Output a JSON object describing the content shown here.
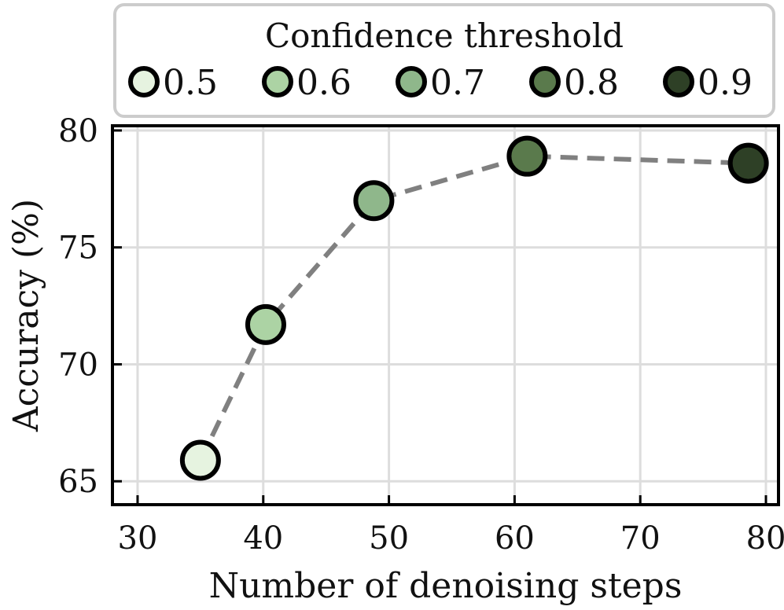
{
  "chart_data": {
    "type": "line",
    "xlabel": "Number of denoising steps",
    "ylabel": "Accuracy (%)",
    "xlim": [
      28,
      81
    ],
    "ylim": [
      64,
      80.2
    ],
    "xticks": [
      "30",
      "40",
      "50",
      "60",
      "70",
      "80"
    ],
    "yticks": [
      "65",
      "70",
      "75",
      "80"
    ],
    "grid": true,
    "line_style": "dashed",
    "line_color": "#808080",
    "legend": {
      "title": "Confidence threshold",
      "placement": "top",
      "entries": [
        "0.5",
        "0.6",
        "0.7",
        "0.8",
        "0.9"
      ]
    },
    "series": [
      {
        "x": [
          35,
          40.2,
          48.8,
          61,
          78.6
        ],
        "y": [
          65.9,
          71.7,
          77.0,
          78.9,
          78.6
        ],
        "point_labels": [
          "0.5",
          "0.6",
          "0.7",
          "0.8",
          "0.9"
        ],
        "colors": [
          "#e6f3e0",
          "#acd3a4",
          "#8fb78b",
          "#5a7a4c",
          "#2e4026"
        ]
      }
    ]
  }
}
